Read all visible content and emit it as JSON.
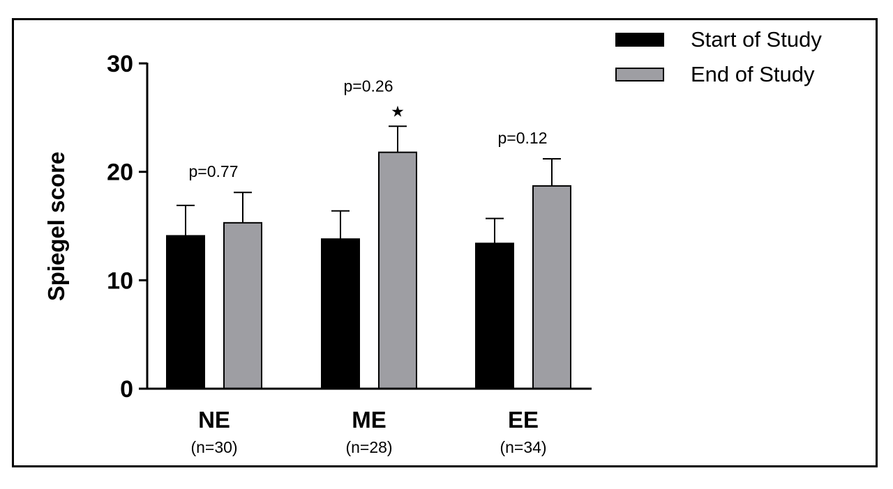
{
  "chart_data": {
    "type": "bar",
    "ylabel": "Spiegel score",
    "ylim": [
      0,
      30
    ],
    "yticks": [
      0,
      10,
      20,
      30
    ],
    "groups": [
      {
        "label": "NE",
        "sublabel": "(n=30)",
        "p_label": "p=0.77",
        "star": ""
      },
      {
        "label": "ME",
        "sublabel": "(n=28)",
        "p_label": "p=0.26",
        "star": "★"
      },
      {
        "label": "EE",
        "sublabel": "(n=34)",
        "p_label": "p=0.12",
        "star": ""
      }
    ],
    "series": [
      {
        "name": "Start of Study",
        "color": "#000000",
        "values": [
          14.1,
          13.8,
          13.4
        ],
        "errors": [
          2.8,
          2.6,
          2.3
        ]
      },
      {
        "name": "End of Study",
        "color": "#9e9ea3",
        "values": [
          15.3,
          21.8,
          18.7
        ],
        "errors": [
          2.8,
          2.4,
          2.5
        ]
      }
    ],
    "legend_position": "top-right"
  }
}
